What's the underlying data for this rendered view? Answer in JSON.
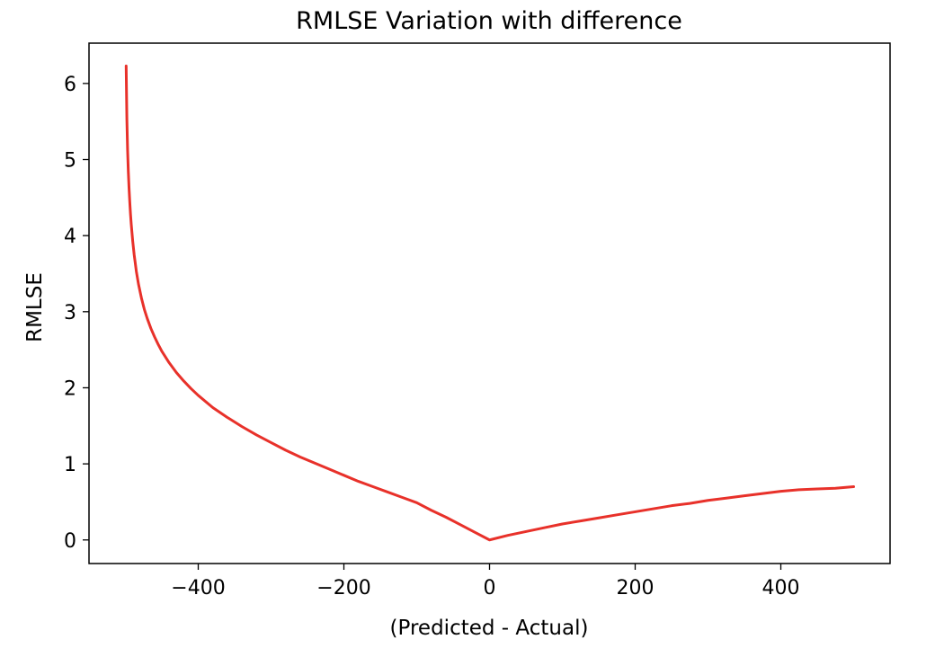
{
  "chart_data": {
    "type": "line",
    "title": "RMLSE Variation with difference",
    "xlabel": "(Predicted - Actual)",
    "ylabel": "RMLSE",
    "xlim": [
      -550,
      550
    ],
    "ylim": [
      -0.31,
      6.53
    ],
    "x_ticks": [
      -400,
      -200,
      0,
      200,
      400
    ],
    "x_tick_labels": [
      "−400",
      "−200",
      "0",
      "200",
      "400"
    ],
    "y_ticks": [
      0,
      1,
      2,
      3,
      4,
      5,
      6
    ],
    "y_tick_labels": [
      "0",
      "1",
      "2",
      "3",
      "4",
      "5",
      "6"
    ],
    "grid": false,
    "legend": false,
    "series": [
      {
        "color": "#e8312a",
        "x": [
          -499,
          -498,
          -497,
          -496,
          -495,
          -494,
          -493,
          -492,
          -490,
          -488,
          -485,
          -482,
          -478,
          -474,
          -470,
          -465,
          -460,
          -455,
          -450,
          -440,
          -430,
          -420,
          -410,
          -400,
          -380,
          -360,
          -340,
          -320,
          -300,
          -280,
          -260,
          -240,
          -220,
          -200,
          -180,
          -160,
          -140,
          -120,
          -100,
          -80,
          -60,
          -40,
          -20,
          0,
          25,
          50,
          75,
          100,
          125,
          150,
          175,
          200,
          225,
          250,
          275,
          300,
          325,
          350,
          375,
          400,
          425,
          450,
          475,
          500
        ],
        "y": [
          6.23,
          5.53,
          5.12,
          4.84,
          4.62,
          4.44,
          4.28,
          4.15,
          3.93,
          3.75,
          3.53,
          3.36,
          3.18,
          3.03,
          2.91,
          2.78,
          2.67,
          2.57,
          2.48,
          2.33,
          2.2,
          2.09,
          1.99,
          1.9,
          1.74,
          1.61,
          1.49,
          1.38,
          1.28,
          1.18,
          1.09,
          1.01,
          0.93,
          0.85,
          0.77,
          0.7,
          0.63,
          0.56,
          0.49,
          0.39,
          0.3,
          0.2,
          0.1,
          0.0,
          0.06,
          0.11,
          0.16,
          0.21,
          0.25,
          0.29,
          0.33,
          0.37,
          0.41,
          0.45,
          0.48,
          0.52,
          0.55,
          0.58,
          0.61,
          0.64,
          0.66,
          0.67,
          0.68,
          0.7
        ]
      }
    ]
  }
}
